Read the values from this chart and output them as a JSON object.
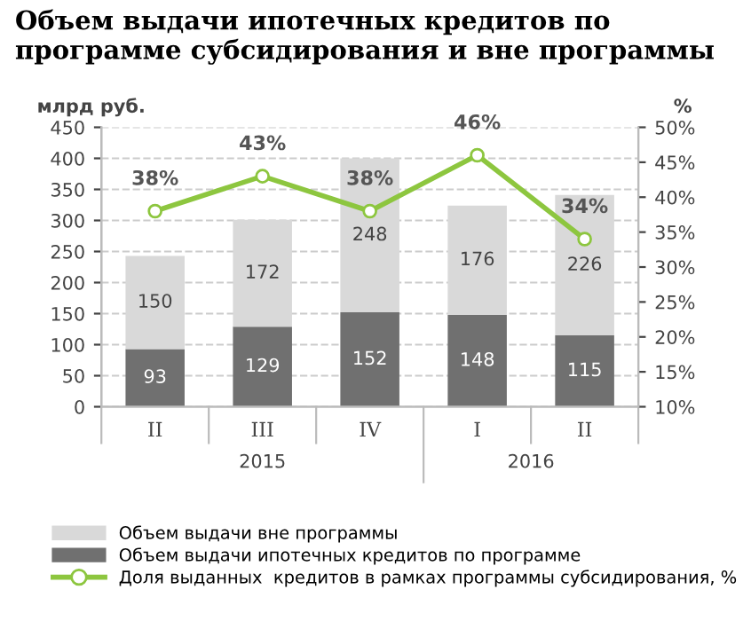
{
  "chart_data": {
    "type": "bar",
    "title": "Объем выдачи ипотечных кредитов по программе субсидирования и вне программы",
    "categories": [
      "II",
      "III",
      "IV",
      "I",
      "II"
    ],
    "series": [
      {
        "name": "Объем выдачи ипотечных кредитов по программе",
        "color": "#707070",
        "values": [
          93,
          129,
          152,
          148,
          115
        ]
      },
      {
        "name": "Объем выдачи вне программы",
        "color": "#d9d9d9",
        "values": [
          150,
          172,
          248,
          176,
          226
        ]
      },
      {
        "name": "Доля выданных  кредитов в рамках программы субсидирования, %",
        "type": "line",
        "axis": "y2",
        "color": "#8dc63f",
        "marker": "circle",
        "values": [
          38,
          43,
          38,
          46,
          34
        ],
        "value_labels": [
          "38%",
          "43%",
          "38%",
          "46%",
          "34%"
        ]
      }
    ],
    "stacked": true,
    "data_labels": true,
    "ylabel": "млрд руб.",
    "y2label": "%",
    "ylim": [
      0,
      450
    ],
    "yticks": [
      0,
      50,
      100,
      150,
      200,
      250,
      300,
      350,
      400,
      450
    ],
    "y2lim": [
      10,
      50
    ],
    "y2ticks": [
      {
        "value": 10,
        "label": "10%"
      },
      {
        "value": 15,
        "label": "15%"
      },
      {
        "value": 20,
        "label": "20%"
      },
      {
        "value": 25,
        "label": "25%"
      },
      {
        "value": 30,
        "label": "30%"
      },
      {
        "value": 35,
        "label": "35%"
      },
      {
        "value": 40,
        "label": "40%"
      },
      {
        "value": 45,
        "label": "45%"
      },
      {
        "value": 50,
        "label": "50%"
      }
    ],
    "annotations": [
      "2015",
      "2016"
    ],
    "grid": "y",
    "legend": "bottom"
  }
}
